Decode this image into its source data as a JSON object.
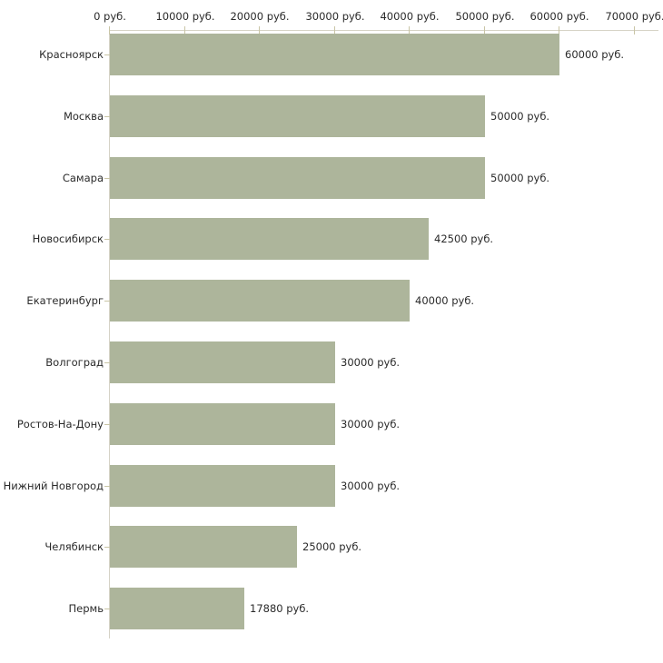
{
  "chart_data": {
    "type": "bar",
    "orientation": "horizontal",
    "title": "",
    "xlabel": "",
    "ylabel": "",
    "unit": "руб.",
    "categories": [
      "Красноярск",
      "Москва",
      "Самара",
      "Новосибирск",
      "Екатеринбург",
      "Волгоград",
      "Ростов-На-Дону",
      "Нижний Новгород",
      "Челябинск",
      "Пермь"
    ],
    "values": [
      60000,
      50000,
      50000,
      42500,
      40000,
      30000,
      30000,
      30000,
      25000,
      17880
    ],
    "value_labels": [
      "60000 руб.",
      "50000 руб.",
      "50000 руб.",
      "42500 руб.",
      "40000 руб.",
      "30000 руб.",
      "30000 руб.",
      "30000 руб.",
      "25000 руб.",
      "17880 руб."
    ],
    "x_tick_values": [
      0,
      10000,
      20000,
      30000,
      40000,
      50000,
      60000,
      70000
    ],
    "x_tick_labels": [
      "0 руб.",
      "10000 руб.",
      "20000 руб.",
      "30000 руб.",
      "40000 руб.",
      "50000 руб.",
      "60000 руб.",
      "70000 руб."
    ],
    "xlim": [
      0,
      73200
    ],
    "grid": false,
    "legend": null,
    "colors": {
      "bar": "#adb59b",
      "axis_line": "#d6d3c6",
      "tick": "#c9c5a6",
      "text": "#2a2a2a",
      "background": "#ffffff"
    }
  }
}
